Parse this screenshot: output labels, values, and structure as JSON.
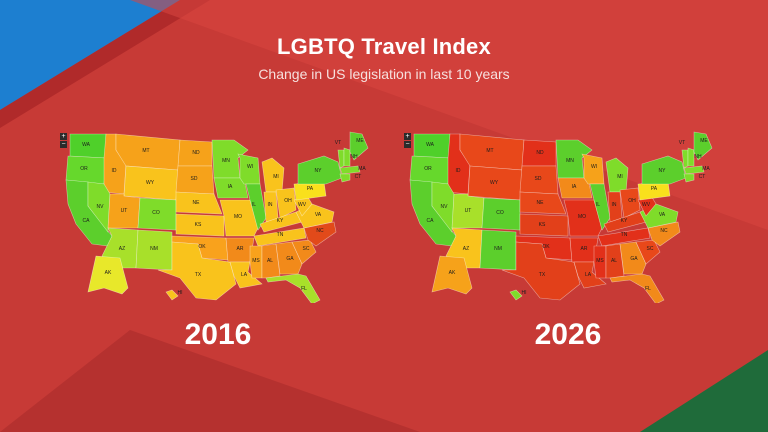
{
  "title": "LGBTQ Travel Index",
  "subtitle": "Change in US legislation in last 10 years",
  "maps": [
    {
      "year": "2016",
      "states": {
        "WA": "#4fd02a",
        "OR": "#66d82c",
        "CA": "#5ccf2c",
        "ID": "#f6a21a",
        "NV": "#7fdc2a",
        "MT": "#f6a21a",
        "WY": "#f9c31c",
        "UT": "#f6a21a",
        "CO": "#7fdc2a",
        "AZ": "#a8e02a",
        "NM": "#a8e02a",
        "ND": "#f6a21a",
        "SD": "#f6a21a",
        "NE": "#f9c31c",
        "KS": "#f9c31c",
        "OK": "#f9a21c",
        "TX": "#f9c31c",
        "MN": "#7fdc2a",
        "IA": "#7fdc2a",
        "MO": "#f9c31c",
        "AR": "#f28a1a",
        "LA": "#f9c31c",
        "WI": "#7fdc2a",
        "IL": "#5ccf2c",
        "MI": "#f9c31c",
        "IN": "#f9c31c",
        "OH": "#f9c31c",
        "KY": "#f9c31c",
        "TN": "#f9c31c",
        "MS": "#f9a21c",
        "AL": "#f28a1a",
        "GA": "#f28a1a",
        "FL": "#a8e02a",
        "SC": "#f28a1a",
        "NC": "#e24a1a",
        "VA": "#f9c31c",
        "WV": "#f9c31c",
        "PA": "#f9e01c",
        "NY": "#5ccf2c",
        "ME": "#5ccf2c",
        "AK": "#e8e82a",
        "HI": "#f9c31c"
      }
    },
    {
      "year": "2026",
      "states": {
        "WA": "#4fd02a",
        "OR": "#66d82c",
        "CA": "#5ccf2c",
        "ID": "#e2301a",
        "NV": "#7fdc2a",
        "MT": "#e8481a",
        "WY": "#e8481a",
        "UT": "#a8e02a",
        "CO": "#5ccf2c",
        "AZ": "#f9c31c",
        "NM": "#5ccf2c",
        "ND": "#e2301a",
        "SD": "#e8481a",
        "NE": "#e8481a",
        "KS": "#e2401a",
        "OK": "#e2301a",
        "TX": "#e2401a",
        "MN": "#5ccf2c",
        "IA": "#f28a1a",
        "MO": "#e2301a",
        "AR": "#e2301a",
        "LA": "#e2401a",
        "WI": "#f6a21a",
        "IL": "#5ccf2c",
        "MI": "#7fdc2a",
        "IN": "#e2401a",
        "OH": "#e8481a",
        "KY": "#e2401a",
        "TN": "#e2301a",
        "MS": "#e2301a",
        "AL": "#e2401a",
        "GA": "#f28a1a",
        "FL": "#f28a1a",
        "SC": "#e8481a",
        "NC": "#f28a1a",
        "VA": "#7fdc2a",
        "WV": "#e2301a",
        "PA": "#f9e01c",
        "NY": "#5ccf2c",
        "ME": "#5ccf2c",
        "AK": "#f6a21a",
        "HI": "#7fdc2a"
      }
    }
  ],
  "labels": [
    "WA",
    "OR",
    "CA",
    "ID",
    "NV",
    "MT",
    "WY",
    "UT",
    "CO",
    "AZ",
    "NM",
    "ND",
    "SD",
    "NE",
    "KS",
    "OK",
    "TX",
    "MN",
    "IA",
    "MO",
    "AR",
    "LA",
    "WI",
    "IL",
    "MI",
    "IN",
    "OH",
    "KY",
    "TN",
    "MS",
    "AL",
    "GA",
    "FL",
    "SC",
    "NC",
    "VA",
    "WV",
    "PA",
    "NY",
    "VT",
    "NH",
    "MA",
    "CT",
    "ME",
    "AK",
    "HI"
  ]
}
